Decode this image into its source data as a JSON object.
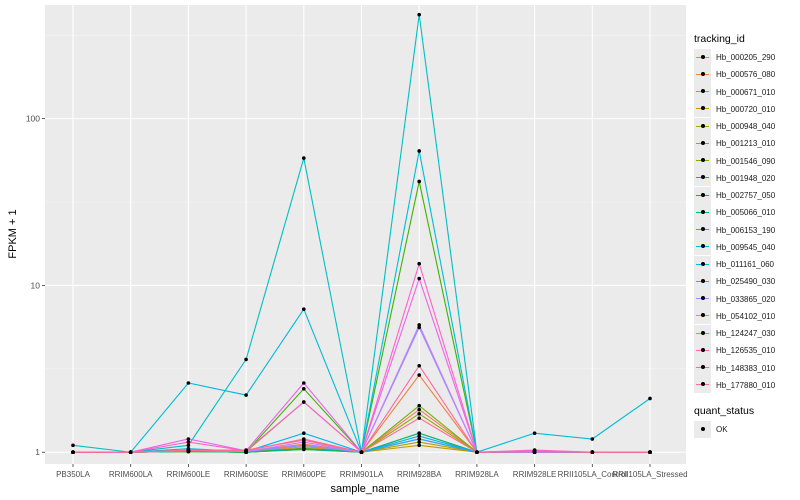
{
  "chart_data": {
    "type": "line",
    "title": "",
    "xlabel": "sample_name",
    "ylabel": "FPKM + 1",
    "y_scale": "log10",
    "ylim": [
      0.85,
      480
    ],
    "y_ticks": [
      1,
      10,
      100
    ],
    "y_tick_labels": [
      "1",
      "10",
      "100"
    ],
    "grid": true,
    "legend_position": "right",
    "categories": [
      "PB350LA",
      "RRIM600LA",
      "RRIM600LE",
      "RRIM600SE",
      "RRIM600PE",
      "RRIM901LA",
      "RRIM928BA",
      "RRIM928LA",
      "RRIM928LE",
      "RRII105LA_Control",
      "RRII105LA_Stressed"
    ],
    "color_legend_title": "tracking_id",
    "shape_legend_title": "quant_status",
    "shape_legend_label": "OK",
    "series": [
      {
        "name": "Hb_000205_290",
        "color": "#F8766D",
        "values": [
          1,
          1,
          1.02,
          1.01,
          1.12,
          1,
          1.8,
          1,
          1.01,
          1,
          1
        ]
      },
      {
        "name": "Hb_000576_080",
        "color": "#EC823C",
        "values": [
          1,
          1,
          1.01,
          1,
          1.08,
          1,
          2.9,
          1,
          1,
          1,
          1
        ]
      },
      {
        "name": "Hb_000671_010",
        "color": "#DC8E00",
        "values": [
          1,
          1,
          1.01,
          1,
          1.05,
          1,
          1.3,
          1,
          1,
          1,
          1
        ]
      },
      {
        "name": "Hb_000720_010",
        "color": "#C99800",
        "values": [
          1,
          1,
          1.01,
          1,
          1.04,
          1,
          1.1,
          1,
          1,
          1,
          1
        ]
      },
      {
        "name": "Hb_000948_040",
        "color": "#B3A000",
        "values": [
          1,
          1,
          1.01,
          1,
          1.06,
          1,
          1.15,
          1,
          1,
          1,
          1
        ]
      },
      {
        "name": "Hb_001213_010",
        "color": "#98A800",
        "values": [
          1,
          1,
          1.01,
          1,
          1.05,
          1,
          1.7,
          1,
          1,
          1,
          1
        ]
      },
      {
        "name": "Hb_001546_090",
        "color": "#76AE00",
        "values": [
          1,
          1,
          1.02,
          1.01,
          2.0,
          1,
          1.9,
          1,
          1,
          1,
          1
        ]
      },
      {
        "name": "Hb_001948_020",
        "color": "#3EB200",
        "values": [
          1,
          1,
          1.01,
          1,
          2.4,
          1,
          42,
          1,
          1,
          1,
          1
        ]
      },
      {
        "name": "Hb_002757_050",
        "color": "#00B64C",
        "values": [
          1,
          1,
          1.01,
          1,
          1.05,
          1,
          1.2,
          1,
          1,
          1,
          1
        ]
      },
      {
        "name": "Hb_005066_010",
        "color": "#00BA7C",
        "values": [
          1,
          1,
          1.01,
          1,
          1.04,
          1,
          1.3,
          1,
          1,
          1,
          1
        ]
      },
      {
        "name": "Hb_006153_190",
        "color": "#00BFC4",
        "values": [
          1.1,
          1,
          1.1,
          3.6,
          58,
          1,
          420,
          1,
          1.01,
          1,
          1
        ]
      },
      {
        "name": "Hb_009545_040",
        "color": "#00BCD8",
        "values": [
          1,
          1,
          2.6,
          2.2,
          7.2,
          1,
          64,
          1,
          1.3,
          1.2,
          2.1
        ]
      },
      {
        "name": "Hb_011161_060",
        "color": "#00B5EA",
        "values": [
          1,
          1,
          1.05,
          1.01,
          1.3,
          1,
          1.25,
          1,
          1.01,
          1,
          1
        ]
      },
      {
        "name": "Hb_025490_030",
        "color": "#35A2FF",
        "values": [
          1,
          1,
          1.02,
          1.01,
          1.1,
          1,
          1.2,
          1,
          1,
          1,
          1
        ]
      },
      {
        "name": "Hb_033865_020",
        "color": "#8F91FF",
        "values": [
          1,
          1,
          1.02,
          1.01,
          1.1,
          1,
          5.6,
          1,
          1,
          1,
          1
        ]
      },
      {
        "name": "Hb_054102_010",
        "color": "#C77CFF",
        "values": [
          1,
          1,
          1.02,
          1.01,
          1.15,
          1,
          5.8,
          1,
          1,
          1,
          1
        ]
      },
      {
        "name": "Hb_124247_030",
        "color": "#EE61ED",
        "values": [
          1,
          1,
          1.2,
          1.02,
          2.6,
          1,
          11,
          1,
          1.02,
          1,
          1
        ]
      },
      {
        "name": "Hb_126535_010",
        "color": "#FF61C9",
        "values": [
          1,
          1,
          1.15,
          1.02,
          2.0,
          1,
          13.5,
          1,
          1.03,
          1,
          1
        ]
      },
      {
        "name": "Hb_148383_010",
        "color": "#FF68A1",
        "values": [
          1,
          1,
          1.02,
          1.02,
          1.2,
          1,
          3.3,
          1,
          1.01,
          1,
          1
        ]
      },
      {
        "name": "Hb_177880_010",
        "color": "#FF6C91",
        "values": [
          1,
          1,
          1.03,
          1.03,
          1.18,
          1,
          1.6,
          1,
          1.01,
          1,
          1
        ]
      }
    ]
  }
}
